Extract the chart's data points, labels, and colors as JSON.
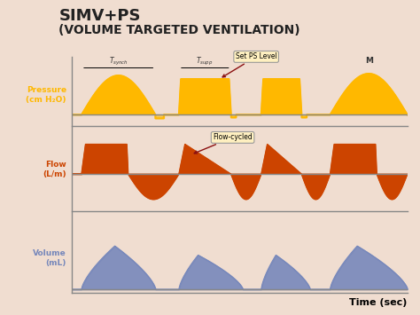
{
  "title_line1": "SIMV+PS",
  "title_line2": "(VOLUME TARGETED VENTILATION)",
  "bg_color": "#f0ddd0",
  "panel_bg": "#ffffff",
  "pressure_color": "#FFB800",
  "flow_color": "#CC4400",
  "volume_color": "#7788BB",
  "pressure_label": "Pressure\n(cm H₂O)",
  "flow_label": "Flow\n(L/m)",
  "volume_label": "Volume\n(mL)",
  "time_label": "Time (sec)",
  "annotation1": "Set PS Level",
  "annotation2": "Flow-cycled",
  "label_M": "M"
}
